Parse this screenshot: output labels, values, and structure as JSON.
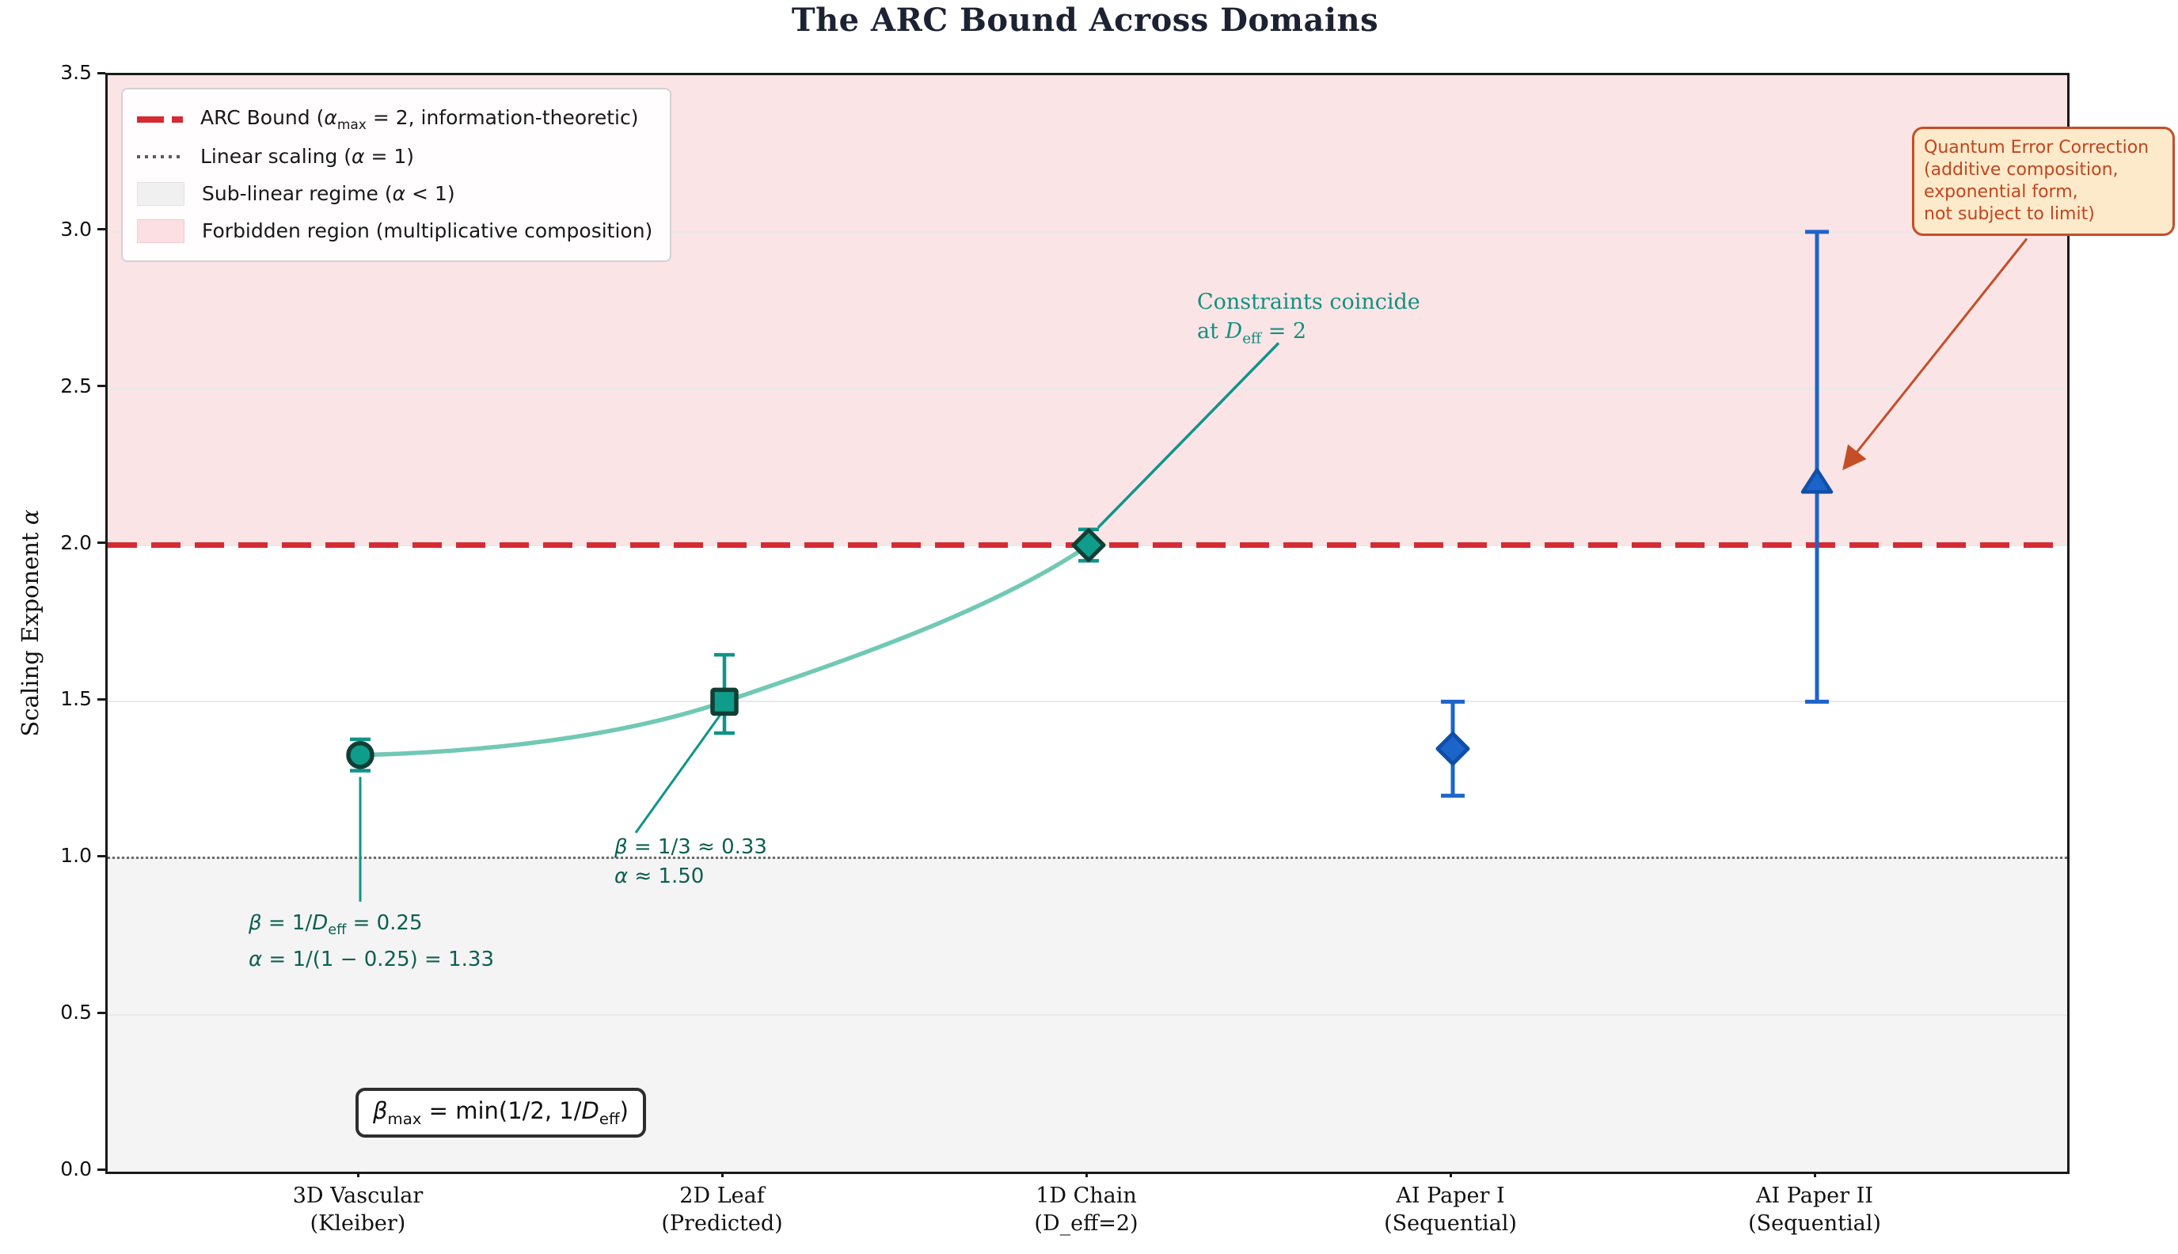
{
  "title": "The ARC Bound Across Domains",
  "axis": {
    "ylabel_rich": "Scaling Exponent *α*",
    "ylabel": "Scaling Exponent α"
  },
  "legend": {
    "items": [
      {
        "swatch": "red-dashed-line",
        "label": "ARC Bound (*α*~max~ = 2, information-theoretic)"
      },
      {
        "swatch": "gray-dotted-line",
        "label": "Linear scaling (*α* = 1)"
      },
      {
        "swatch": "gray-patch",
        "label": "Sub-linear regime (*α* < 1)"
      },
      {
        "swatch": "pink-patch",
        "label": "Forbidden region (multiplicative composition)"
      }
    ]
  },
  "annotations": {
    "vascular": "*β* = 1/*D*~eff~ = 0.25\n*α* = 1/(1 − 0.25) = 1.33",
    "leaf": "*β* = 1/3 ≈ 0.33\n*α* ≈ 1.50",
    "constraints": "Constraints coincide\nat *D*~eff~ = 2",
    "formula": "*β*~max~ = min(1/2,  1/*D*~eff~)",
    "qec": "Quantum Error Correction\n(additive composition,\nexponential form,\nnot subject to limit)"
  },
  "colors": {
    "teal_marker": "#0f9c8b",
    "teal_edge": "#123f35",
    "teal_errorbar": "#0f9488",
    "trend_curve": "#62c3ad",
    "blue_marker": "#1c64c9",
    "blue_edge": "#0f4fa8",
    "arc_bound_red": "#d62b33",
    "forbidden_pink": "#fbe4e6",
    "sublinear_gray": "#f4f4f4",
    "annotation_teal_dark": "#0d5f50",
    "annotation_teal": "#12917e",
    "qec_orange_border": "#c44e28",
    "qec_orange_text": "#c2451f",
    "qec_orange_bg": "#fdeacb",
    "title_navy": "#1d2233"
  },
  "chart_data": {
    "type": "scatter",
    "title": "The ARC Bound Across Domains",
    "ylabel": "Scaling Exponent α",
    "ylim": [
      0,
      3.5
    ],
    "yticks": [
      "0.0",
      "0.5",
      "1.0",
      "1.5",
      "2.0",
      "2.5",
      "3.0",
      "3.5"
    ],
    "grid": true,
    "legend_position": "upper left",
    "categories": [
      [
        "3D Vascular",
        "(Kleiber)"
      ],
      [
        "2D Leaf",
        "(Predicted)"
      ],
      [
        "1D Chain",
        "(D_eff=2)"
      ],
      [
        "AI Paper I",
        "(Sequential)"
      ],
      [
        "AI Paper II",
        "(Sequential)"
      ]
    ],
    "series": [
      {
        "id": "effective-dimension-scaling",
        "color": "#0f9c8b",
        "edge_color": "#123f35",
        "errorbar_color": "#0f9488",
        "trend_curve": true,
        "points": [
          {
            "category_index": 0,
            "marker": "circle",
            "alpha": 1.33,
            "err_minus": 0.05,
            "err_plus": 0.05
          },
          {
            "category_index": 1,
            "marker": "square",
            "alpha": 1.5,
            "err_minus": 0.1,
            "err_plus": 0.15
          },
          {
            "category_index": 2,
            "marker": "diamond",
            "alpha": 2.0,
            "err_minus": 0.05,
            "err_plus": 0.05
          }
        ]
      },
      {
        "id": "ai-papers-sequential",
        "color": "#1c64c9",
        "edge_color": "#0f4fa8",
        "errorbar_color": "#1c64c9",
        "trend_curve": false,
        "points": [
          {
            "category_index": 3,
            "marker": "diamond",
            "alpha": 1.35,
            "err_minus": 0.15,
            "err_plus": 0.15
          },
          {
            "category_index": 4,
            "marker": "triangle",
            "alpha": 2.2,
            "err_minus": 0.7,
            "err_plus": 0.8
          }
        ]
      }
    ],
    "reference_lines": [
      {
        "value": 2.0,
        "style": "dashed",
        "color": "#d62b33",
        "label": "ARC Bound (α_max = 2, information-theoretic)"
      },
      {
        "value": 1.0,
        "style": "dotted",
        "color": "#555555",
        "label": "Linear scaling (α = 1)"
      }
    ],
    "regions": [
      {
        "from": 2.0,
        "to": 3.5,
        "color": "#fbe4e6",
        "label": "Forbidden region (multiplicative composition)"
      },
      {
        "from": 0.0,
        "to": 1.0,
        "color": "#f4f4f4",
        "label": "Sub-linear regime (α < 1)"
      }
    ]
  }
}
